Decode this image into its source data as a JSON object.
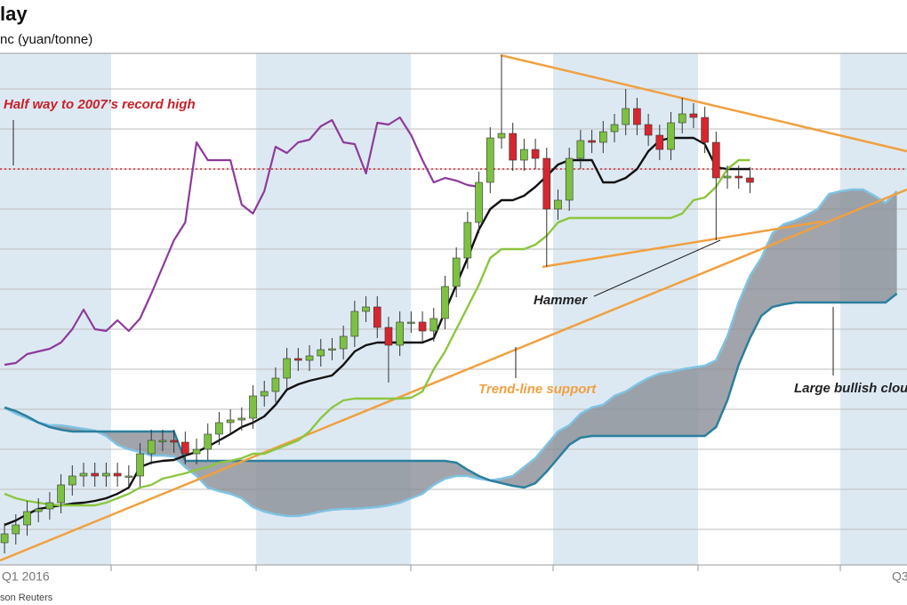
{
  "chart_data": {
    "type": "candlestick",
    "title": "lay",
    "subtitle": "nc (yuan/tonne)",
    "source": "son Reuters",
    "period_labels": [
      "Q1 2016",
      "Q3"
    ],
    "annotations": [
      "Half way to 2007’s record high",
      "Hammer",
      "Trend-line support",
      "Large bullish clou"
    ],
    "xlim": [
      -0.4,
      79.9
    ],
    "ylim": [
      5,
      580
    ],
    "grid": true,
    "grid_lines": [
      45,
      90,
      135,
      180,
      225,
      270,
      315,
      360,
      405,
      450,
      495,
      540
    ],
    "reference_line": {
      "value": 450,
      "color": "#d2232a"
    },
    "x": [
      0,
      1,
      2,
      3,
      4,
      5,
      6,
      7,
      8,
      9,
      10,
      11,
      12,
      13,
      14,
      15,
      16,
      17,
      18,
      19,
      20,
      21,
      22,
      23,
      24,
      25,
      26,
      27,
      28,
      29,
      30,
      31,
      32,
      33,
      34,
      35,
      36,
      37,
      38,
      39,
      40,
      41,
      42,
      43,
      44,
      45,
      46,
      47,
      48,
      49,
      50,
      51,
      52,
      53,
      54,
      55,
      56,
      57,
      58,
      59,
      60,
      61,
      62,
      63,
      64,
      65,
      66,
      67,
      68,
      69,
      70,
      71,
      72,
      73,
      74,
      75,
      76,
      77,
      78,
      79
    ],
    "candles": {
      "up_color": "#7dc142",
      "down_color": "#d7262e",
      "wick_color": "#333333",
      "open": [
        30,
        40,
        50,
        65,
        68,
        75,
        95,
        105,
        108,
        105,
        108,
        105,
        105,
        130,
        145,
        145,
        143,
        130,
        135,
        152,
        165,
        168,
        170,
        195,
        200,
        215,
        237,
        235,
        240,
        247,
        248,
        262,
        290,
        295,
        272,
        252,
        278,
        278,
        268,
        282,
        318,
        350,
        390,
        435,
        485,
        490,
        460,
        472,
        462,
        405,
        415,
        462,
        482,
        480,
        492,
        500,
        518,
        500,
        488,
        472,
        502,
        512,
        508,
        480,
        440,
        442,
        440,
        null,
        null,
        null,
        null,
        null,
        null,
        null,
        null,
        null,
        null,
        null,
        null,
        null
      ],
      "high": [
        52,
        62,
        77,
        80,
        87,
        107,
        117,
        120,
        120,
        120,
        120,
        117,
        142,
        157,
        157,
        157,
        155,
        147,
        164,
        177,
        180,
        182,
        207,
        212,
        227,
        249,
        249,
        252,
        259,
        260,
        274,
        302,
        307,
        307,
        284,
        290,
        290,
        290,
        294,
        330,
        362,
        402,
        447,
        497,
        578,
        502,
        484,
        484,
        474,
        427,
        474,
        494,
        494,
        504,
        512,
        540,
        530,
        512,
        500,
        514,
        530,
        524,
        520,
        492,
        454,
        454,
        452,
        null,
        null,
        null,
        null,
        null,
        null,
        null,
        null,
        null,
        null,
        null,
        null,
        null
      ],
      "low": [
        18,
        28,
        38,
        53,
        56,
        63,
        83,
        93,
        93,
        93,
        93,
        93,
        93,
        118,
        133,
        131,
        118,
        118,
        123,
        140,
        153,
        156,
        158,
        183,
        188,
        203,
        223,
        223,
        228,
        235,
        236,
        250,
        278,
        260,
        210,
        240,
        266,
        256,
        256,
        270,
        306,
        338,
        378,
        423,
        473,
        448,
        448,
        450,
        340,
        393,
        403,
        450,
        468,
        468,
        480,
        488,
        488,
        476,
        460,
        460,
        490,
        496,
        468,
        370,
        428,
        428,
        423,
        null,
        null,
        null,
        null,
        null,
        null,
        null,
        null,
        null,
        null,
        null,
        null,
        null
      ],
      "close": [
        40,
        50,
        65,
        68,
        75,
        95,
        105,
        108,
        105,
        108,
        105,
        105,
        130,
        145,
        145,
        143,
        130,
        135,
        152,
        165,
        168,
        170,
        195,
        200,
        215,
        237,
        235,
        240,
        247,
        248,
        262,
        290,
        295,
        272,
        252,
        278,
        278,
        268,
        282,
        318,
        350,
        390,
        435,
        485,
        490,
        460,
        472,
        462,
        405,
        415,
        462,
        482,
        480,
        492,
        500,
        518,
        500,
        488,
        472,
        502,
        512,
        508,
        480,
        440,
        442,
        440,
        435,
        null,
        null,
        null,
        null,
        null,
        null,
        null,
        null,
        null,
        null,
        null,
        null,
        null
      ]
    },
    "series": [
      {
        "color": "#8e3a9c",
        "values": [
          230,
          232,
          242,
          245,
          248,
          255,
          270,
          292,
          270,
          268,
          280,
          268,
          282,
          310,
          340,
          370,
          390,
          480,
          460,
          460,
          460,
          410,
          400,
          425,
          475,
          468,
          480,
          483,
          498,
          505,
          480,
          478,
          445,
          502,
          500,
          508,
          488,
          460,
          435,
          440,
          437,
          432,
          430,
          null,
          null,
          null,
          null,
          null,
          null,
          null,
          null,
          null,
          null,
          null,
          null,
          null,
          null,
          null,
          null,
          null,
          null,
          null,
          null,
          null,
          null,
          null,
          null,
          null,
          null,
          null,
          null,
          null,
          null,
          null,
          null,
          null,
          null,
          null,
          null,
          null
        ]
      },
      {
        "color": "#111111",
        "values": [
          50,
          55,
          62,
          68,
          70,
          72,
          74,
          75,
          77,
          80,
          85,
          92,
          115,
          120,
          122,
          123,
          128,
          132,
          138,
          145,
          152,
          160,
          165,
          172,
          185,
          202,
          208,
          212,
          215,
          218,
          230,
          245,
          252,
          255,
          255,
          255,
          255,
          255,
          260,
          290,
          320,
          350,
          382,
          405,
          415,
          415,
          420,
          430,
          442,
          455,
          460,
          460,
          460,
          435,
          435,
          440,
          450,
          470,
          482,
          485,
          485,
          485,
          478,
          452,
          450,
          450,
          450,
          null,
          null,
          null,
          null,
          null,
          null,
          null,
          null,
          null,
          null,
          null,
          null,
          null
        ]
      },
      {
        "color": "#8cc63f",
        "values": [
          85,
          80,
          77,
          75,
          73,
          72,
          72,
          72,
          72,
          75,
          80,
          85,
          92,
          95,
          102,
          105,
          108,
          112,
          115,
          120,
          122,
          125,
          130,
          130,
          135,
          140,
          145,
          155,
          170,
          182,
          190,
          192,
          192,
          192,
          192,
          192,
          193,
          200,
          225,
          245,
          270,
          295,
          320,
          350,
          360,
          360,
          360,
          365,
          375,
          390,
          395,
          395,
          395,
          395,
          395,
          395,
          395,
          395,
          395,
          395,
          400,
          415,
          418,
          430,
          450,
          460,
          460,
          null,
          null,
          null,
          null,
          null,
          null,
          null,
          null,
          null,
          null,
          null,
          null,
          null
        ]
      }
    ],
    "cloud": {
      "fill": "#8a8f96",
      "span_a": {
        "color": "#7fc3e3",
        "values": [
          182,
          175,
          170,
          165,
          162,
          162,
          160,
          158,
          156,
          150,
          140,
          135,
          132,
          128,
          128,
          127,
          115,
          105,
          92,
          88,
          85,
          80,
          70,
          65,
          62,
          60,
          60,
          62,
          65,
          67,
          68,
          68,
          69,
          70,
          72,
          75,
          80,
          85,
          95,
          102,
          105,
          105,
          102,
          100,
          102,
          105,
          115,
          125,
          140,
          155,
          162,
          175,
          182,
          185,
          195,
          200,
          208,
          215,
          220,
          222,
          225,
          227,
          229,
          235,
          262,
          300,
          330,
          350,
          378,
          388,
          392,
          398,
          405,
          422,
          425,
          427,
          427,
          420,
          412,
          425
        ]
      },
      "span_b": {
        "color": "#2a7f9e",
        "values": [
          182,
          178,
          172,
          165,
          160,
          157,
          155,
          155,
          155,
          155,
          155,
          155,
          155,
          155,
          155,
          155,
          122,
          122,
          122,
          122,
          122,
          122,
          122,
          122,
          122,
          122,
          122,
          122,
          122,
          122,
          122,
          122,
          122,
          122,
          122,
          122,
          122,
          122,
          122,
          122,
          120,
          112,
          105,
          100,
          97,
          94,
          92,
          97,
          110,
          125,
          140,
          148,
          150,
          150,
          150,
          150,
          150,
          150,
          150,
          150,
          150,
          150,
          150,
          160,
          190,
          230,
          260,
          285,
          295,
          298,
          300,
          300,
          300,
          300,
          300,
          300,
          300,
          300,
          300,
          310
        ]
      }
    }
  }
}
